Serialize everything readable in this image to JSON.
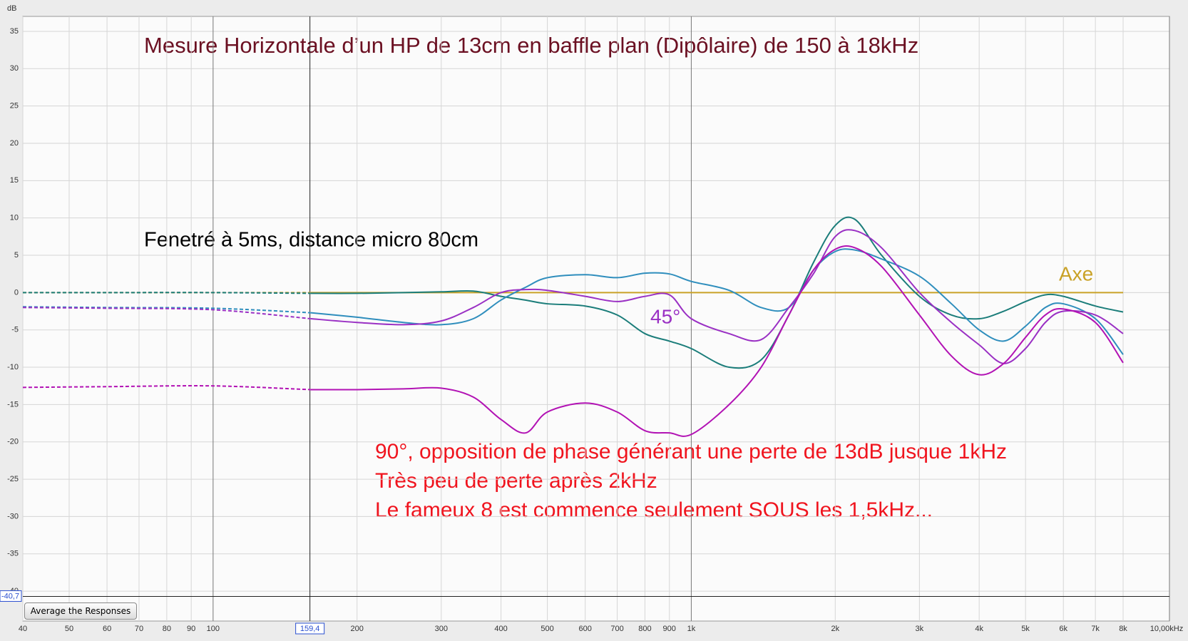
{
  "chart_data": {
    "type": "line",
    "title": "Mesure Horizontale d’un HP de 13cm en baffle plan (Dipôlaire) de 150 à 18kHz",
    "subtitle": "Fenetré à 5ms, distance micro 80cm",
    "notes": [
      "90°, opposition de phase générant une perte de 13dB jusque 1kHz",
      "Très peu de perte après 2kHz",
      "Le fameux 8 est commence seulement SOUS les 1,5kHz..."
    ],
    "y_label": "dB",
    "log_x": true,
    "grid": true,
    "xlim": [
      40,
      10000
    ],
    "ylim": [
      -44,
      37
    ],
    "xticks": [
      40,
      50,
      60,
      70,
      80,
      90,
      100,
      200,
      300,
      400,
      500,
      600,
      700,
      800,
      900,
      {
        "value": 1000,
        "label": "1k"
      },
      {
        "value": 2000,
        "label": "2k"
      },
      {
        "value": 3000,
        "label": "3k"
      },
      {
        "value": 4000,
        "label": "4k"
      },
      {
        "value": 5000,
        "label": "5k"
      },
      {
        "value": 6000,
        "label": "6k"
      },
      {
        "value": 7000,
        "label": "7k"
      },
      {
        "value": 8000,
        "label": "8k"
      },
      {
        "value": 10000,
        "label": "10,00kHz"
      }
    ],
    "yticks": [
      35,
      30,
      25,
      20,
      15,
      10,
      5,
      0,
      -5,
      -10,
      -15,
      -20,
      -25,
      -30,
      -35,
      -40
    ],
    "cursor": {
      "x": {
        "value": 159.4,
        "label": "159,4"
      },
      "y": {
        "value": -40.7,
        "label": "-40,7"
      }
    },
    "x": [
      40,
      60,
      100,
      160,
      200,
      250,
      300,
      350,
      400,
      450,
      500,
      600,
      700,
      800,
      900,
      1000,
      1200,
      1400,
      1600,
      1800,
      2000,
      2200,
      2500,
      3000,
      3500,
      4000,
      4500,
      5000,
      5500,
      6000,
      7000,
      8000
    ],
    "series": [
      {
        "name": "Axe",
        "color": "#c9a227",
        "values": [
          0,
          0,
          0,
          0,
          0,
          0,
          0,
          0,
          0,
          0,
          0,
          0,
          0,
          0,
          0,
          0,
          0,
          0,
          0,
          0,
          0,
          0,
          0,
          0,
          0,
          0,
          0,
          0,
          0,
          0,
          0,
          0
        ]
      },
      {
        "color": "#1b7d7a",
        "values": [
          0,
          0,
          0,
          -0.1,
          -0.1,
          0,
          0.1,
          0.2,
          -0.5,
          -1,
          -1.5,
          -1.8,
          -3,
          -5.5,
          -6.5,
          -7.5,
          -10,
          -9,
          -3,
          4,
          9,
          9.8,
          5,
          -0.5,
          -3,
          -3.5,
          -2.5,
          -1.2,
          -0.3,
          -0.5,
          -1.8,
          -2.6
        ]
      },
      {
        "color": "#2f8ebd",
        "values": [
          -1.9,
          -2,
          -2.1,
          -2.7,
          -3.3,
          -4,
          -4.3,
          -3.5,
          -1,
          0.7,
          2,
          2.4,
          2,
          2.6,
          2.5,
          1.5,
          0.3,
          -2,
          -2,
          3,
          5.5,
          5.7,
          4.5,
          2.2,
          -1.5,
          -5,
          -6.5,
          -4.5,
          -2,
          -1.5,
          -3.5,
          -8.3
        ]
      },
      {
        "name": "45°",
        "color": "#9a30c4",
        "values": [
          -2,
          -2.1,
          -2.3,
          -3.5,
          -4,
          -4.3,
          -3.8,
          -2,
          0,
          0.4,
          0.3,
          -0.5,
          -1.2,
          -0.5,
          -0.3,
          -3.5,
          -5.5,
          -6.3,
          -2,
          2.5,
          7.5,
          8.3,
          6,
          0,
          -4,
          -7,
          -9.5,
          -7.5,
          -4,
          -2.5,
          -3,
          -5.5
        ]
      },
      {
        "color": "#b212b4",
        "values": [
          -12.7,
          -12.6,
          -12.5,
          -13,
          -13,
          -12.9,
          -12.8,
          -14,
          -17,
          -18.8,
          -16,
          -14.8,
          -16,
          -18.5,
          -18.8,
          -19,
          -15,
          -10,
          -3,
          3,
          5.8,
          6,
          3.5,
          -3,
          -8.5,
          -11,
          -9.5,
          -6,
          -3,
          -2.2,
          -4,
          -9.4
        ]
      }
    ]
  },
  "controls": {
    "average_button": "Average the Responses"
  }
}
